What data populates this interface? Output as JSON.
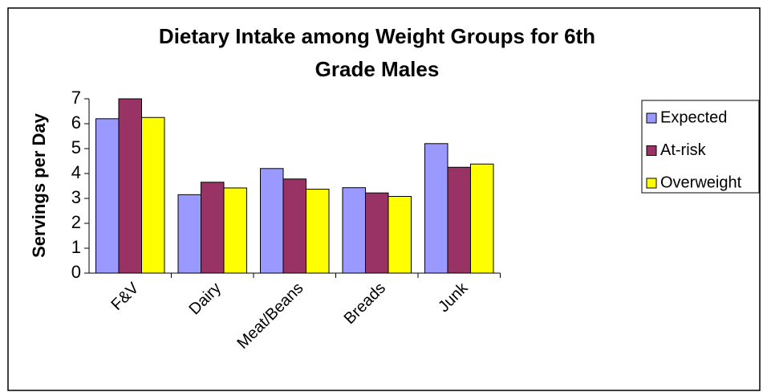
{
  "chart_data": {
    "type": "bar",
    "title": [
      "Dietary Intake among Weight Groups for 6th",
      "Grade Males"
    ],
    "y_label": "Servings per Day",
    "categories": [
      "F&V",
      "Dairy",
      "Meat/Beans",
      "Breads",
      "Junk"
    ],
    "series": [
      {
        "name": "Expected",
        "color": "#9999ff",
        "values": [
          6.2,
          3.15,
          4.2,
          3.43,
          5.2
        ]
      },
      {
        "name": "At-risk",
        "color": "#993366",
        "values": [
          7.0,
          3.65,
          3.78,
          3.22,
          4.25
        ]
      },
      {
        "name": "Overweight",
        "color": "#ffff00",
        "values": [
          6.25,
          3.42,
          3.37,
          3.08,
          4.38
        ]
      }
    ],
    "ylim": [
      0,
      7
    ],
    "yticks": [
      0,
      1,
      2,
      3,
      4,
      5,
      6,
      7
    ],
    "grid": false,
    "legend": "right"
  }
}
